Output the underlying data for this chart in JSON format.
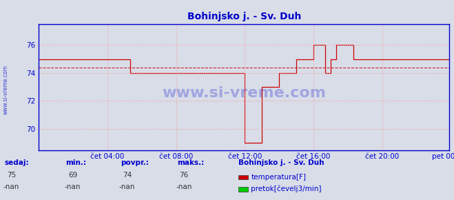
{
  "title": "Bohinjsko j. - Sv. Duh",
  "bg_color": "#d8dde8",
  "plot_bg_color": "#d8dde8",
  "line_color": "#cc0000",
  "avg_line_color": "#cc0000",
  "grid_color": "#ff9999",
  "axis_color": "#0000cc",
  "text_color": "#0000cc",
  "ylim": [
    68.5,
    77.5
  ],
  "yticks": [
    70,
    72,
    74,
    76
  ],
  "xtick_labels": [
    "čet 04:00",
    "čet 08:00",
    "čet 12:00",
    "čet 16:00",
    "čet 20:00",
    "pet 00:00"
  ],
  "avg_value": 74.4,
  "sedaj": 75,
  "min_val": 69,
  "povpr_val": 74,
  "maks_val": 76,
  "legend_title": "Bohinjsko j. - Sv. Duh",
  "legend_items": [
    {
      "label": "temperatura[F]",
      "color": "#cc0000"
    },
    {
      "label": "pretok[čevelj3/min]",
      "color": "#00cc00"
    }
  ],
  "watermark": "www.si-vreme.com",
  "sidebar_text": "www.si-vreme.com",
  "n_points": 288,
  "temp_data": [
    75,
    75,
    75,
    75,
    75,
    75,
    75,
    75,
    75,
    75,
    75,
    75,
    75,
    75,
    75,
    75,
    75,
    75,
    75,
    75,
    75,
    75,
    75,
    75,
    75,
    75,
    75,
    75,
    75,
    75,
    75,
    75,
    75,
    75,
    75,
    75,
    75,
    75,
    75,
    75,
    75,
    75,
    75,
    75,
    75,
    75,
    75,
    75,
    75,
    75,
    75,
    75,
    75,
    75,
    75,
    75,
    75,
    75,
    75,
    75,
    75,
    75,
    75,
    75,
    74,
    74,
    74,
    74,
    74,
    74,
    74,
    74,
    74,
    74,
    74,
    74,
    74,
    74,
    74,
    74,
    74,
    74,
    74,
    74,
    74,
    74,
    74,
    74,
    74,
    74,
    74,
    74,
    74,
    74,
    74,
    74,
    74,
    74,
    74,
    74,
    74,
    74,
    74,
    74,
    74,
    74,
    74,
    74,
    74,
    74,
    74,
    74,
    74,
    74,
    74,
    74,
    74,
    74,
    74,
    74,
    74,
    74,
    74,
    74,
    74,
    74,
    74,
    74,
    74,
    74,
    74,
    74,
    74,
    74,
    74,
    74,
    74,
    74,
    74,
    74,
    74,
    74,
    74,
    74,
    69,
    69,
    69,
    69,
    69,
    69,
    69,
    69,
    69,
    69,
    69,
    69,
    73,
    73,
    73,
    73,
    73,
    73,
    73,
    73,
    73,
    73,
    73,
    73,
    74,
    74,
    74,
    74,
    74,
    74,
    74,
    74,
    74,
    74,
    74,
    74,
    75,
    75,
    75,
    75,
    75,
    75,
    75,
    75,
    75,
    75,
    75,
    75,
    76,
    76,
    76,
    76,
    76,
    76,
    76,
    76,
    74,
    74,
    74,
    74,
    75,
    75,
    75,
    75,
    76,
    76,
    76,
    76,
    76,
    76,
    76,
    76,
    76,
    76,
    76,
    76,
    75,
    75,
    75,
    75,
    75,
    75,
    75,
    75,
    75,
    75,
    75,
    75,
    75,
    75,
    75,
    75,
    75,
    75,
    75,
    75,
    75,
    75,
    75,
    75,
    75,
    75,
    75,
    75,
    75,
    75,
    75,
    75,
    75,
    75,
    75,
    75,
    75,
    75,
    75,
    75,
    75,
    75,
    75,
    75,
    75,
    75,
    75,
    75,
    75,
    75,
    75,
    75,
    75,
    75,
    75,
    75,
    75,
    75,
    75,
    75,
    75,
    75,
    75,
    75,
    75,
    75,
    75,
    75
  ]
}
